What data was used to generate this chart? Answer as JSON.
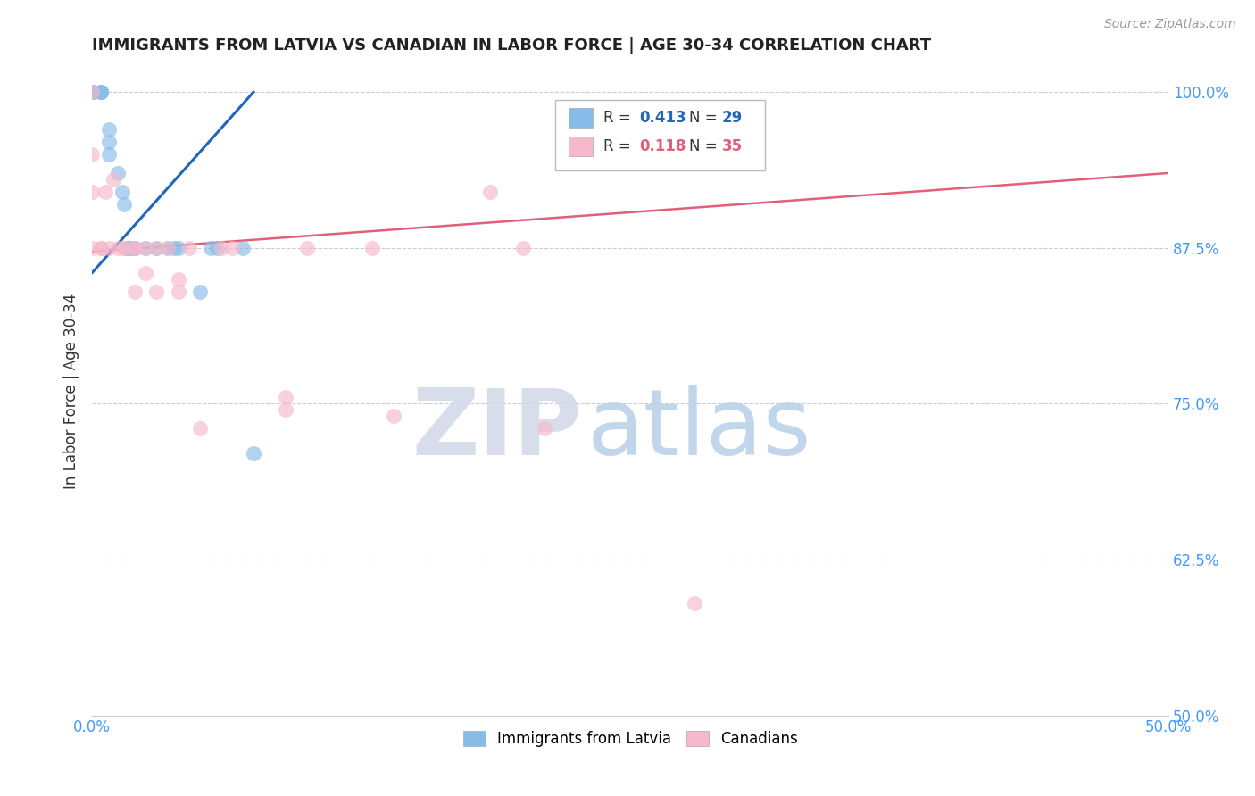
{
  "title": "IMMIGRANTS FROM LATVIA VS CANADIAN IN LABOR FORCE | AGE 30-34 CORRELATION CHART",
  "source": "Source: ZipAtlas.com",
  "ylabel": "In Labor Force | Age 30-34",
  "xlim": [
    0.0,
    0.5
  ],
  "ylim": [
    0.5,
    1.02
  ],
  "xticks": [
    0.0,
    0.05,
    0.1,
    0.15,
    0.2,
    0.25,
    0.3,
    0.35,
    0.4,
    0.45,
    0.5
  ],
  "xtick_labels": [
    "0.0%",
    "",
    "",
    "",
    "",
    "",
    "",
    "",
    "",
    "",
    "50.0%"
  ],
  "yticks": [
    0.5,
    0.625,
    0.75,
    0.875,
    1.0
  ],
  "ytick_labels": [
    "50.0%",
    "62.5%",
    "75.0%",
    "87.5%",
    "100.0%"
  ],
  "blue_R": "0.413",
  "blue_N": "29",
  "pink_R": "0.118",
  "pink_N": "35",
  "blue_scatter_x": [
    0.0,
    0.0,
    0.0,
    0.0,
    0.0,
    0.004,
    0.004,
    0.004,
    0.008,
    0.008,
    0.008,
    0.012,
    0.014,
    0.015,
    0.016,
    0.016,
    0.018,
    0.02,
    0.02,
    0.025,
    0.03,
    0.035,
    0.038,
    0.04,
    0.05,
    0.055,
    0.058,
    0.07,
    0.075
  ],
  "blue_scatter_y": [
    1.0,
    1.0,
    1.0,
    1.0,
    1.0,
    1.0,
    1.0,
    1.0,
    0.97,
    0.96,
    0.95,
    0.935,
    0.92,
    0.91,
    0.875,
    0.875,
    0.875,
    0.875,
    0.875,
    0.875,
    0.875,
    0.875,
    0.875,
    0.875,
    0.84,
    0.875,
    0.875,
    0.875,
    0.71
  ],
  "pink_scatter_x": [
    0.0,
    0.0,
    0.0,
    0.0,
    0.004,
    0.004,
    0.006,
    0.008,
    0.01,
    0.012,
    0.015,
    0.015,
    0.02,
    0.02,
    0.02,
    0.025,
    0.025,
    0.03,
    0.03,
    0.035,
    0.04,
    0.04,
    0.045,
    0.05,
    0.06,
    0.065,
    0.09,
    0.09,
    0.1,
    0.13,
    0.14,
    0.185,
    0.2,
    0.21,
    0.28
  ],
  "pink_scatter_y": [
    1.0,
    0.95,
    0.92,
    0.875,
    0.875,
    0.875,
    0.92,
    0.875,
    0.93,
    0.875,
    0.875,
    0.875,
    0.875,
    0.84,
    0.875,
    0.875,
    0.855,
    0.875,
    0.84,
    0.875,
    0.85,
    0.84,
    0.875,
    0.73,
    0.875,
    0.875,
    0.755,
    0.745,
    0.875,
    0.875,
    0.74,
    0.92,
    0.875,
    0.73,
    0.59
  ],
  "blue_line_x": [
    0.0,
    0.075
  ],
  "blue_line_y": [
    0.855,
    1.0
  ],
  "pink_line_x": [
    0.0,
    0.5
  ],
  "pink_line_y": [
    0.872,
    0.935
  ],
  "blue_color": "#87BCE8",
  "pink_color": "#F7B8CB",
  "blue_line_color": "#2266bb",
  "pink_line_color": "#E0607A",
  "grid_color": "#cccccc",
  "ytick_color": "#4499ff",
  "xtick_color": "#4499ff",
  "bg_color": "#ffffff"
}
